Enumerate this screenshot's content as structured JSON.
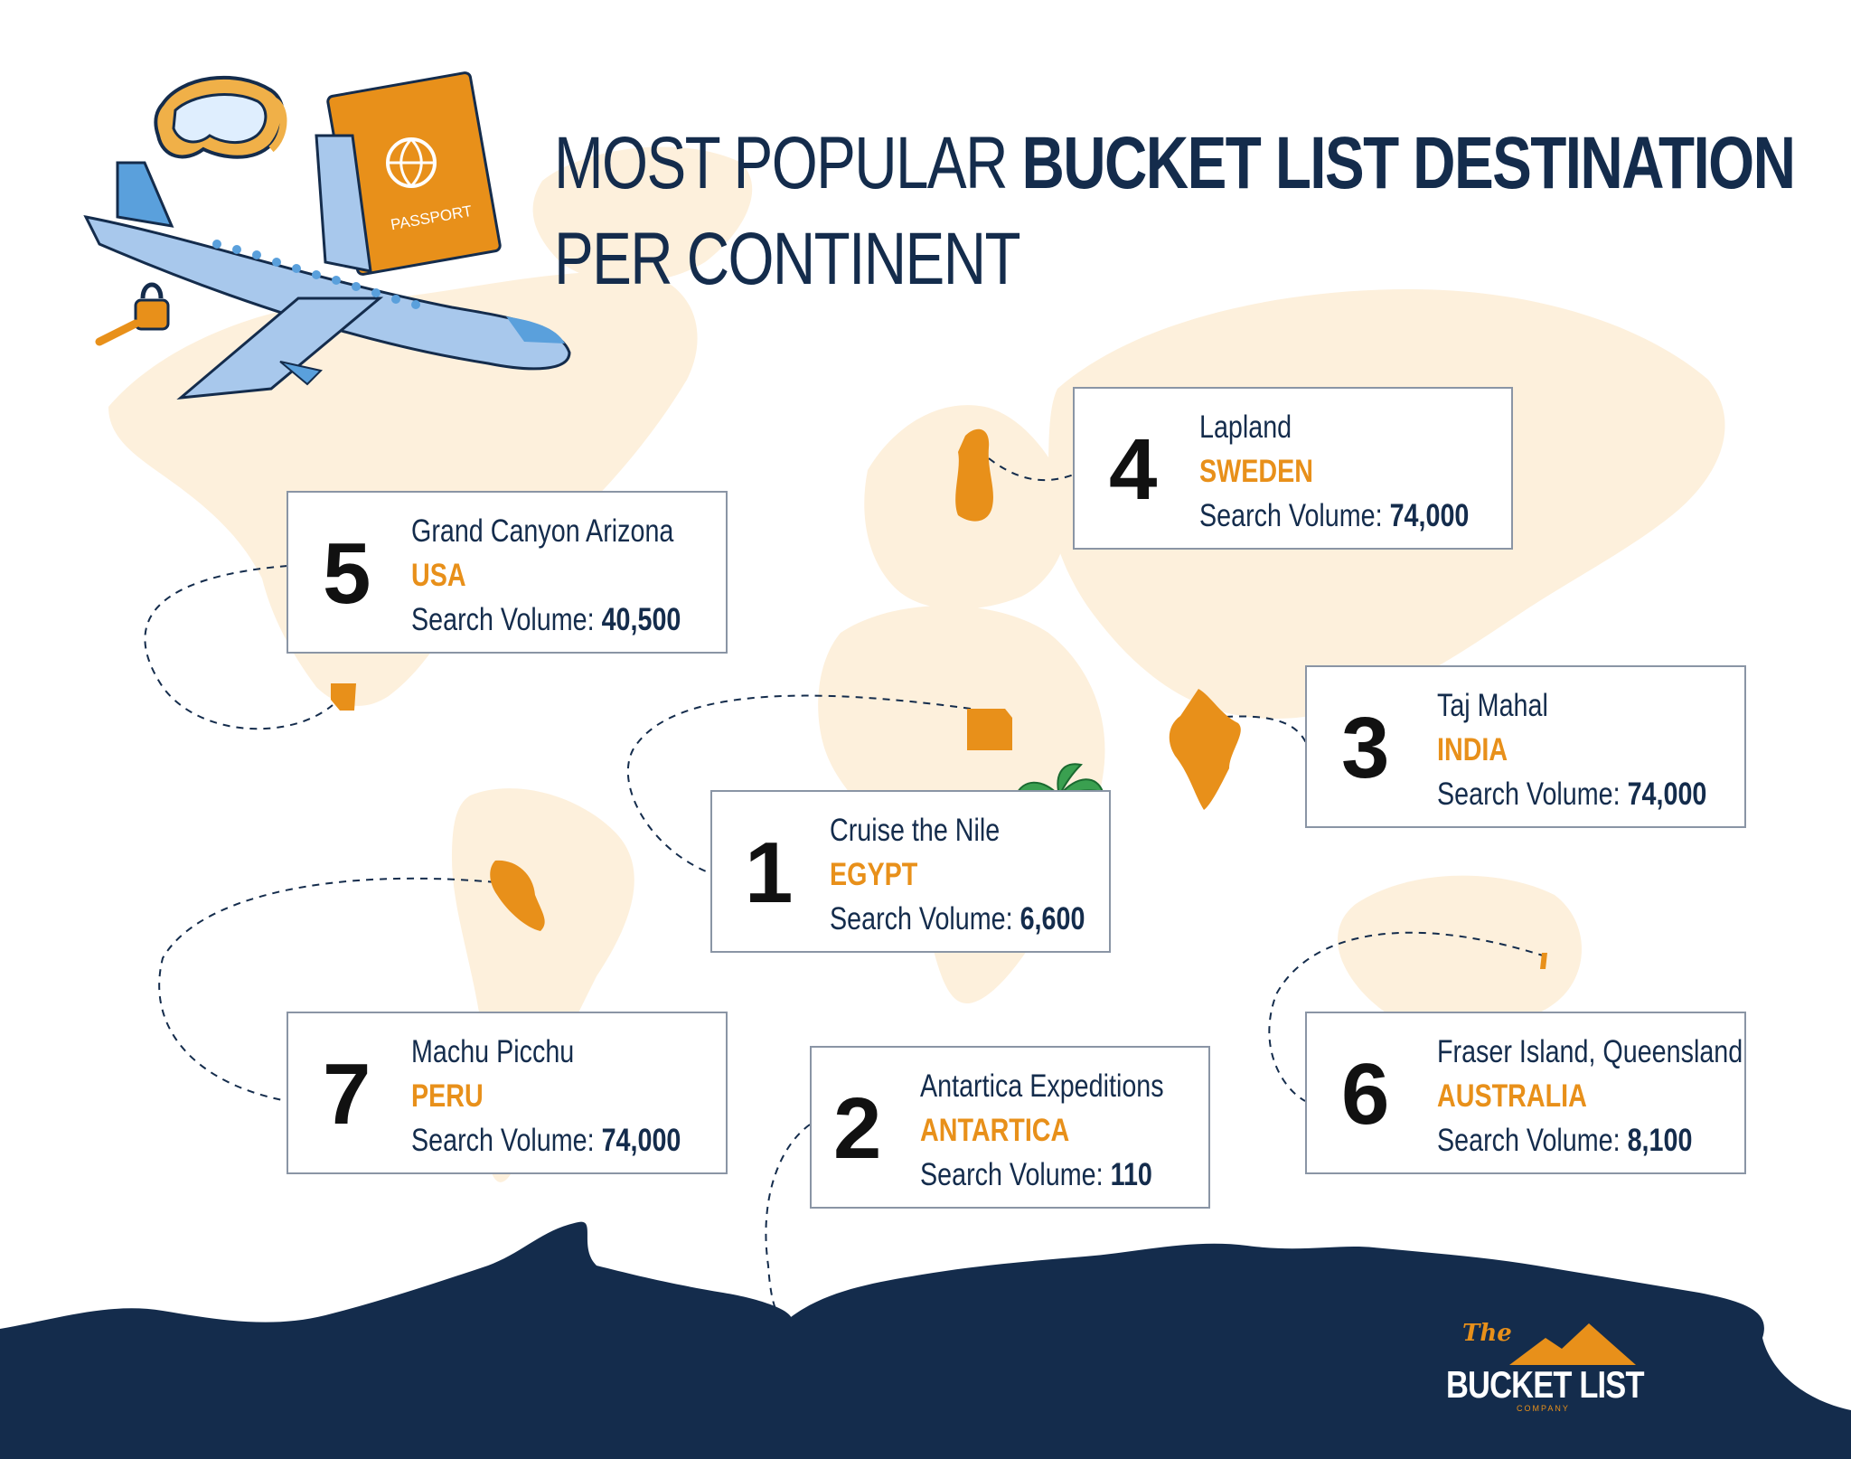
{
  "title": {
    "prefix": "MOST POPULAR ",
    "bold": "BUCKET LIST DESTINATION",
    "line2": "PER CONTINENT"
  },
  "colors": {
    "navy": "#142c4c",
    "orange": "#e8901a",
    "map_land": "#fdf0dc",
    "card_border": "#8a95a5"
  },
  "destinations": [
    {
      "rank": "4",
      "place": "Lapland",
      "country": "SWEDEN",
      "volume_label": "Search Volume: ",
      "volume": "74,000"
    },
    {
      "rank": "5",
      "place": "Grand Canyon Arizona",
      "country": "USA",
      "volume_label": "Search Volume: ",
      "volume": "40,500"
    },
    {
      "rank": "3",
      "place": "Taj Mahal",
      "country": "INDIA",
      "volume_label": "Search Volume: ",
      "volume": "74,000"
    },
    {
      "rank": "1",
      "place": "Cruise the Nile",
      "country": "EGYPT",
      "volume_label": "Search Volume: ",
      "volume": "6,600"
    },
    {
      "rank": "7",
      "place": "Machu Picchu",
      "country": "PERU",
      "volume_label": "Search Volume: ",
      "volume": "74,000"
    },
    {
      "rank": "2",
      "place": "Antartica Expeditions",
      "country": "ANTARTICA",
      "volume_label": "Search Volume: ",
      "volume": "110"
    },
    {
      "rank": "6",
      "place": "Fraser Island, Queensland",
      "country": "AUSTRALIA",
      "volume_label": "Search Volume: ",
      "volume": "8,100"
    }
  ],
  "illustrations": {
    "passport_text": "PASSPORT",
    "icons": [
      "airplane-icon",
      "passport-icon",
      "snorkel-mask-icon",
      "padlock-key-icon",
      "palm-tree-icon"
    ]
  },
  "logo": {
    "the": "The",
    "name": "BUCKET LIST",
    "company": "COMPANY"
  }
}
